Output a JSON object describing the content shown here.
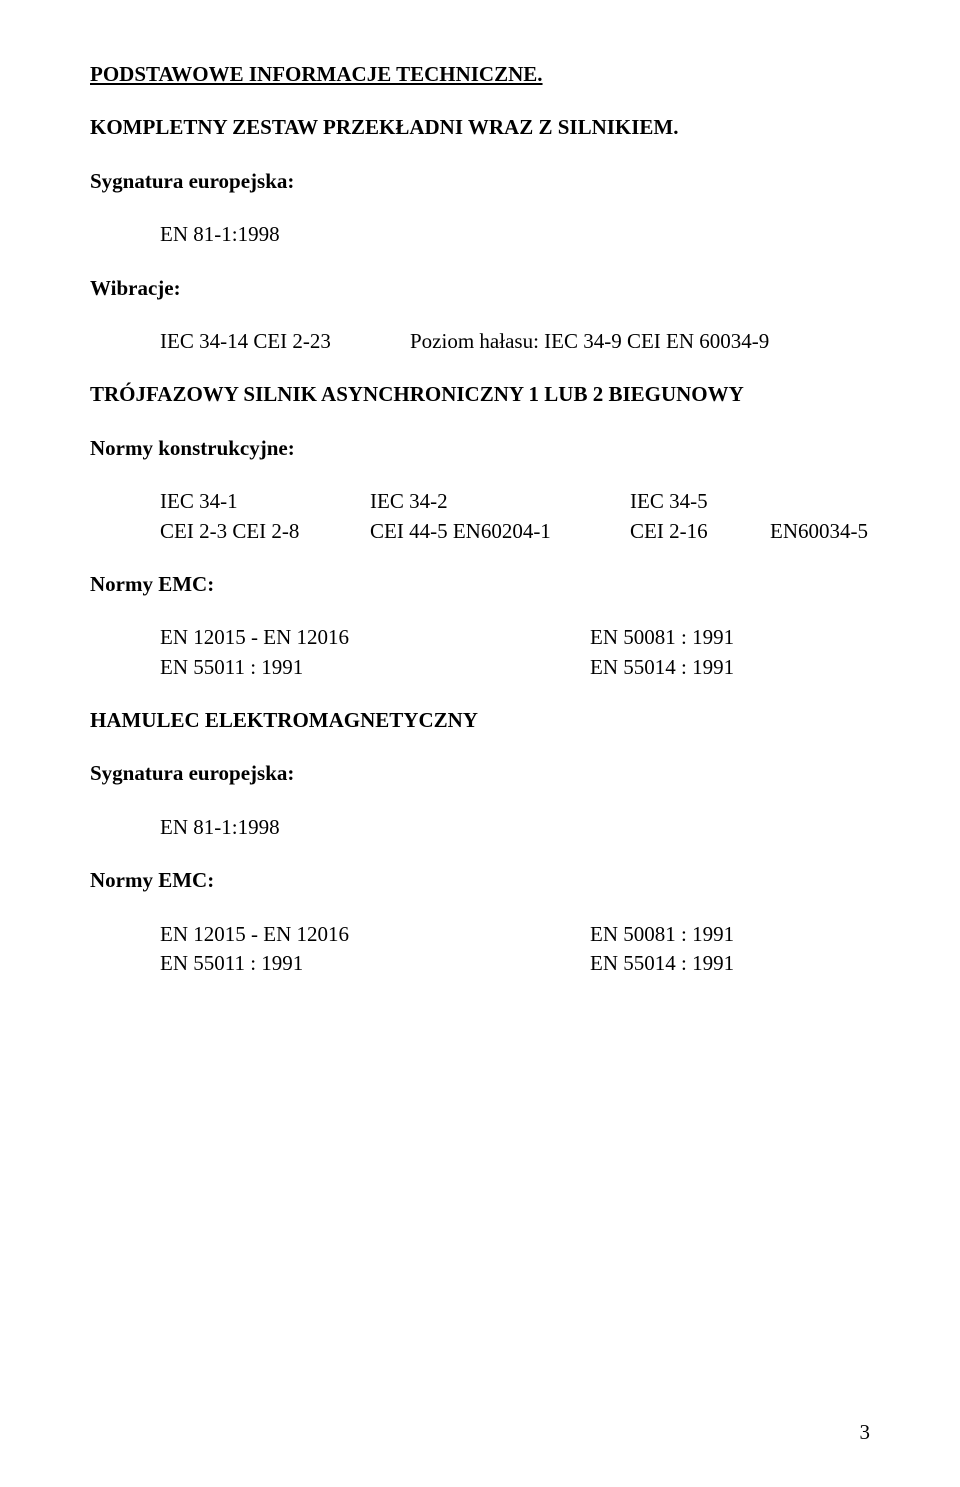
{
  "title": "PODSTAWOWE INFORMACJE TECHNICZNE.",
  "subtitle": "KOMPLETNY ZESTAW PRZEKŁADNI WRAZ Z SILNIKIEM.",
  "sig_label": "Sygnatura europejska:",
  "sig_value": "EN 81-1:1998",
  "vibrations_label": "Wibracje:",
  "vibrations": {
    "left": "IEC 34-14  CEI 2-23",
    "right": "Poziom hałasu: IEC 34-9  CEI EN 60034-9"
  },
  "motor_heading": "TRÓJFAZOWY SILNIK ASYNCHRONICZNY 1 LUB 2 BIEGUNOWY",
  "construction_label": "Normy konstrukcyjne:",
  "construction_rows": {
    "r1c1": "IEC 34-1",
    "r1c2": "IEC 34-2",
    "r1c3": "IEC 34-5",
    "r2c1": "CEI 2-3 CEI 2-8",
    "r2c2": "CEI 44-5  EN60204-1",
    "r2c3": "CEI 2-16",
    "r2c4": "EN60034-5"
  },
  "emc_label": "Normy EMC:",
  "emc1": {
    "l1": "EN 12015 - EN 12016",
    "r1": "EN 50081 : 1991",
    "l2": "EN 55011 : 1991",
    "r2": "EN 55014 : 1991"
  },
  "brake_heading": "HAMULEC ELEKTROMAGNETYCZNY",
  "sig_label2": "Sygnatura europejska:",
  "sig_value2": "EN 81-1:1998",
  "emc_label2": "Normy EMC:",
  "emc2": {
    "l1": "EN 12015 - EN 12016",
    "r1": "EN 50081 : 1991",
    "l2": "EN 55011 : 1991",
    "r2": "EN 55014 : 1991"
  },
  "page_number": "3"
}
